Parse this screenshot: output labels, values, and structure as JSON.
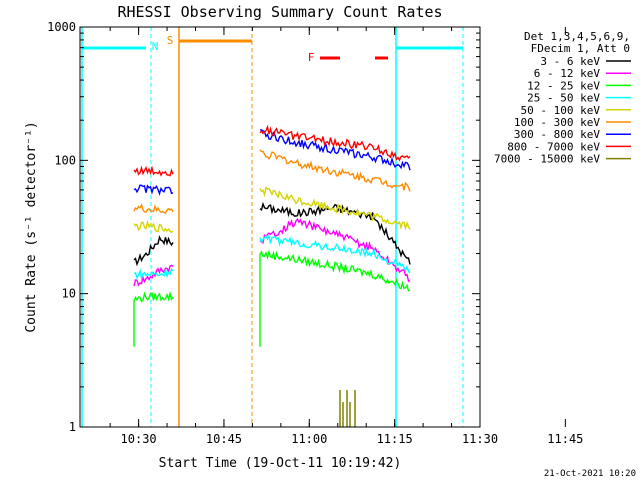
{
  "chart_data": {
    "type": "line",
    "title": "RHESSI Observing Summary Count Rates",
    "xlabel": "Start Time (19-Oct-11 10:19:42)",
    "ylabel": "Count Rate (s⁻¹ detector⁻¹)",
    "yscale": "log",
    "ylim": [
      1,
      1000
    ],
    "y_ticks": [
      {
        "v": 1,
        "label": "1"
      },
      {
        "v": 10,
        "label": "10"
      },
      {
        "v": 100,
        "label": "100"
      },
      {
        "v": 1000,
        "label": "1000"
      }
    ],
    "x_start_min": 19.7,
    "x_end_min": 90.0,
    "x_ticks": [
      {
        "m": 30,
        "label": "10:30"
      },
      {
        "m": 45,
        "label": "10:45"
      },
      {
        "m": 60,
        "label": "11:00"
      },
      {
        "m": 75,
        "label": "11:15"
      },
      {
        "m": 90,
        "label": "11:30"
      },
      {
        "m": 105,
        "label": "11:45"
      }
    ],
    "legend_header": [
      "Det 1,3,4,5,6,9,",
      "FDecim 1, Att 0"
    ],
    "legend_position": "right",
    "series": [
      {
        "name": "3 - 6 keV",
        "color": "#000000",
        "seg1": [
          17,
          20,
          26,
          24
        ],
        "seg2": [
          45,
          40,
          44,
          38,
          17
        ]
      },
      {
        "name": "6 - 12 keV",
        "color": "#ff00ff",
        "seg1": [
          12,
          13,
          15,
          16
        ],
        "seg2": [
          25,
          35,
          28,
          22,
          13
        ]
      },
      {
        "name": "12 - 25 keV",
        "color": "#00ff00",
        "seg1": [
          9,
          9.5,
          9.5,
          9.5
        ],
        "seg2": [
          20,
          18,
          16,
          14,
          11
        ]
      },
      {
        "name": "25 - 50 keV",
        "color": "#00ffff",
        "seg1": [
          14,
          14,
          14,
          15
        ],
        "seg2": [
          26,
          24,
          22,
          20,
          15
        ]
      },
      {
        "name": "50 - 100 keV",
        "color": "#d4d400",
        "seg1": [
          32,
          32,
          31,
          30
        ],
        "seg2": [
          60,
          50,
          44,
          38,
          32
        ]
      },
      {
        "name": "100 - 300 keV",
        "color": "#ff8c00",
        "seg1": [
          44,
          43,
          42,
          42
        ],
        "seg2": [
          115,
          95,
          82,
          72,
          62
        ]
      },
      {
        "name": "300 - 800 keV",
        "color": "#0000ff",
        "seg1": [
          62,
          61,
          60,
          59
        ],
        "seg2": [
          160,
          135,
          120,
          105,
          90
        ]
      },
      {
        "name": "800 - 7000 keV",
        "color": "#ff0000",
        "seg1": [
          84,
          83,
          82,
          82
        ],
        "seg2": [
          172,
          150,
          138,
          125,
          100
        ]
      },
      {
        "name": "7000 - 15000 keV",
        "color": "#808000",
        "seg1": [],
        "seg2": []
      }
    ],
    "annotations": [
      {
        "label": "N",
        "color": "#00ffff"
      },
      {
        "label": "S",
        "color": "#ff8c00"
      },
      {
        "label": "F",
        "color": "#ff0000"
      }
    ]
  },
  "footer_date": "21-Oct-2021 10:20"
}
